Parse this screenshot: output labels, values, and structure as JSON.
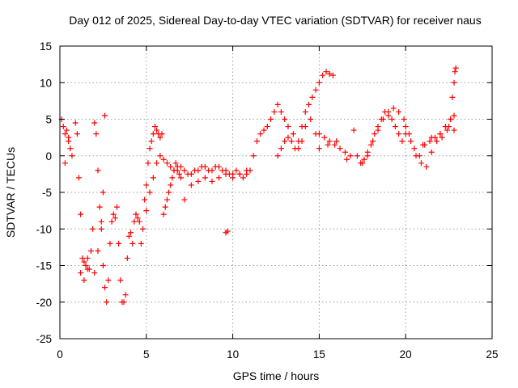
{
  "chart_data": {
    "type": "scatter",
    "title": "Day 012 of 2025, Sidereal Day-to-day VTEC variation (SDTVAR) for receiver naus",
    "xlabel": "GPS time / hours",
    "ylabel": "SDTVAR / TECUs",
    "xlim": [
      0,
      25
    ],
    "ylim": [
      -25,
      15
    ],
    "x_ticks": [
      0,
      5,
      10,
      15,
      20,
      25
    ],
    "y_ticks": [
      -25,
      -20,
      -15,
      -10,
      -5,
      0,
      5,
      10,
      15
    ],
    "x_tick_labels": [
      "0",
      "5",
      "10",
      "15",
      "20",
      "25"
    ],
    "y_tick_labels": [
      "-25",
      "-20",
      "-15",
      "-10",
      "-5",
      "0",
      "5",
      "10",
      "15"
    ],
    "grid": true,
    "marker": "plus",
    "marker_color": "#ff0000",
    "series": [
      {
        "name": "SDTVAR",
        "x": [
          0.1,
          0.2,
          0.3,
          0.4,
          0.5,
          0.6,
          0.7,
          0.3,
          0.5,
          0.9,
          1.0,
          1.1,
          1.2,
          1.3,
          1.4,
          1.5,
          1.6,
          1.7,
          1.8,
          1.9,
          2.0,
          2.1,
          2.2,
          2.3,
          2.4,
          2.5,
          2.6,
          2.7,
          2.8,
          2.9,
          3.0,
          3.1,
          3.2,
          3.3,
          1.2,
          1.4,
          1.6,
          2.0,
          2.2,
          2.4,
          2.5,
          2.6,
          3.4,
          3.5,
          3.6,
          3.7,
          3.8,
          3.9,
          4.0,
          4.1,
          4.2,
          4.3,
          4.4,
          4.5,
          4.6,
          4.7,
          4.8,
          4.9,
          5.0,
          5.1,
          5.2,
          5.3,
          5.4,
          5.5,
          5.6,
          5.7,
          5.8,
          5.9,
          6.0,
          6.1,
          6.2,
          6.3,
          6.4,
          6.5,
          6.6,
          6.7,
          6.8,
          6.9,
          7.0,
          5.0,
          5.2,
          5.4,
          5.6,
          5.8,
          6.0,
          6.2,
          6.4,
          6.6,
          6.8,
          7.0,
          7.2,
          7.4,
          7.6,
          7.8,
          8.0,
          8.2,
          8.4,
          8.6,
          8.8,
          9.0,
          9.2,
          9.4,
          9.6,
          9.8,
          10.0,
          10.2,
          10.4,
          10.6,
          10.8,
          11.0,
          7.2,
          7.6,
          8.0,
          8.4,
          8.8,
          9.2,
          9.6,
          10.0,
          10.4,
          10.8,
          9.6,
          9.7,
          11.2,
          11.4,
          11.6,
          11.8,
          12.0,
          12.2,
          12.4,
          12.6,
          12.8,
          13.0,
          13.2,
          13.4,
          13.6,
          13.8,
          14.0,
          14.2,
          14.4,
          14.6,
          14.8,
          15.0,
          15.2,
          15.4,
          15.6,
          15.8,
          12.6,
          12.8,
          13.0,
          13.2,
          13.5,
          13.8,
          14.0,
          14.2,
          14.5,
          14.8,
          15.0,
          15.3,
          15.6,
          15.9,
          16.2,
          16.5,
          16.8,
          15.0,
          15.5,
          16.0,
          16.6,
          17.0,
          17.2,
          17.4,
          17.6,
          17.8,
          18.0,
          18.2,
          18.4,
          18.6,
          18.8,
          19.0,
          19.2,
          19.4,
          19.6,
          19.8,
          20.0,
          17.5,
          17.8,
          18.1,
          18.4,
          18.7,
          19.0,
          19.3,
          19.6,
          19.9,
          20.2,
          20.5,
          20.8,
          21.1,
          21.4,
          21.7,
          22.0,
          22.3,
          22.6,
          22.8,
          20.0,
          20.3,
          20.6,
          20.9,
          21.2,
          21.5,
          21.8,
          22.1,
          22.4,
          22.6,
          22.7,
          22.8,
          22.85,
          22.9,
          21.0,
          21.5,
          22.0,
          22.5,
          22.8
        ],
        "y": [
          5.0,
          4.0,
          3.0,
          3.5,
          2.0,
          1.0,
          0.0,
          -1.0,
          2.5,
          4.5,
          3.0,
          -3.0,
          -8.0,
          -14.0,
          -17.0,
          -15.0,
          -14.0,
          -15.5,
          -13.0,
          -10.0,
          4.5,
          3.0,
          -2.0,
          -7.0,
          -10.0,
          -15.0,
          -18.0,
          -20.0,
          -17.0,
          -12.0,
          -9.0,
          -8.0,
          -8.5,
          -7.0,
          -16.0,
          -14.5,
          -15.5,
          -16.0,
          -13.0,
          -9.0,
          -5.0,
          5.5,
          -12.0,
          -17.0,
          -20.0,
          -20.0,
          -19.0,
          -14.0,
          -11.0,
          -10.5,
          -12.0,
          -9.0,
          -8.0,
          -8.5,
          -9.0,
          -12.0,
          -10.0,
          -6.0,
          -4.0,
          -1.0,
          1.0,
          2.0,
          3.0,
          4.0,
          3.5,
          3.0,
          2.5,
          3.0,
          -8.0,
          -7.0,
          -6.0,
          -5.0,
          -4.0,
          -3.0,
          -2.0,
          -1.0,
          -1.5,
          -2.5,
          -3.0,
          -7.5,
          -5.0,
          -3.0,
          -1.0,
          0.0,
          -0.5,
          -1.0,
          -1.5,
          -2.0,
          -2.0,
          -1.5,
          -2.0,
          -2.5,
          -2.5,
          -2.0,
          -2.0,
          -1.5,
          -1.5,
          -2.0,
          -2.0,
          -1.5,
          -1.5,
          -2.0,
          -2.0,
          -2.5,
          -2.5,
          -2.0,
          -2.5,
          -3.0,
          -2.5,
          -2.0,
          -6.0,
          -4.0,
          -3.5,
          -3.0,
          -3.5,
          -3.0,
          -2.5,
          -3.0,
          -2.5,
          -2.0,
          -10.5,
          -10.3,
          0.0,
          2.0,
          3.0,
          3.5,
          4.0,
          5.0,
          6.0,
          7.0,
          6.0,
          5.0,
          4.0,
          2.0,
          1.0,
          2.0,
          4.0,
          6.0,
          7.0,
          8.0,
          9.0,
          10.0,
          11.0,
          11.5,
          11.2,
          11.0,
          0.0,
          1.0,
          2.0,
          2.5,
          3.0,
          1.0,
          2.0,
          4.0,
          5.0,
          3.0,
          3.0,
          2.5,
          2.0,
          1.5,
          1.0,
          0.5,
          0.0,
          1.0,
          1.5,
          2.0,
          -0.5,
          3.5,
          0.0,
          -1.0,
          -0.5,
          0.5,
          1.5,
          3.0,
          4.0,
          5.0,
          6.0,
          5.5,
          5.0,
          4.0,
          3.0,
          2.0,
          3.0,
          -1.0,
          0.0,
          2.0,
          3.5,
          5.0,
          6.0,
          6.5,
          6.0,
          5.0,
          3.0,
          1.0,
          0.0,
          1.5,
          2.0,
          2.5,
          3.0,
          4.0,
          5.0,
          5.5,
          4.0,
          2.0,
          0.0,
          -1.0,
          -1.5,
          0.5,
          2.0,
          2.5,
          3.5,
          5.0,
          8.0,
          10.0,
          11.5,
          12.0,
          1.5,
          2.5,
          3.0,
          4.0,
          3.5
        ]
      }
    ]
  }
}
